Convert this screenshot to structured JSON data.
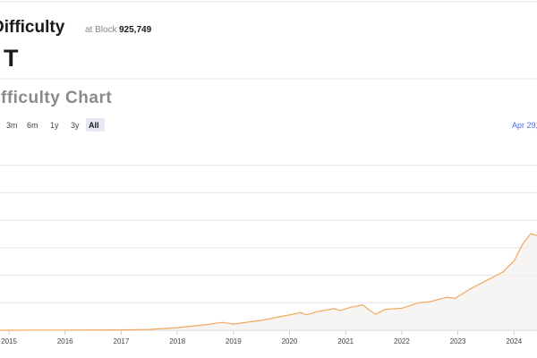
{
  "header": {
    "title": "Difficulty",
    "block_label": "at Block",
    "block": "925,749",
    "value": "T"
  },
  "chart_header": {
    "title": "Difficulty Chart",
    "ranges": [
      "3m",
      "6m",
      "1y",
      "3y",
      "All"
    ],
    "selected": "All",
    "date": "Apr 29,"
  },
  "chart_data": {
    "type": "line",
    "x": [
      2014.84,
      2016,
      2017,
      2017.5,
      2018,
      2018.5,
      2018.8,
      2019,
      2019.5,
      2019.9,
      2020,
      2020.2,
      2020.3,
      2020.5,
      2020.8,
      2020.9,
      2021.1,
      2021.3,
      2021.53,
      2021.7,
      2022,
      2022.3,
      2022.5,
      2022.8,
      2022.95,
      2023.2,
      2023.5,
      2023.8,
      2024,
      2024.15,
      2024.3,
      2024.41
    ],
    "values": [
      0.04,
      0.16,
      0.3,
      0.7,
      2.4,
      5,
      7.2,
      5.6,
      9,
      13,
      14,
      16,
      14,
      17,
      19.7,
      18,
      21,
      23,
      14.4,
      19,
      20,
      25,
      26,
      30,
      29,
      37,
      45,
      53,
      63,
      78,
      88,
      86
    ],
    "color": "#f0a95c",
    "xlim": [
      2014.84,
      2024.41
    ],
    "xticks": [
      2015,
      2016,
      2017,
      2018,
      2019,
      2020,
      2021,
      2022,
      2023,
      2024
    ],
    "ylim": [
      0,
      175
    ],
    "yticks": [
      0,
      25,
      50,
      75,
      100,
      125,
      150
    ],
    "grid": true
  }
}
